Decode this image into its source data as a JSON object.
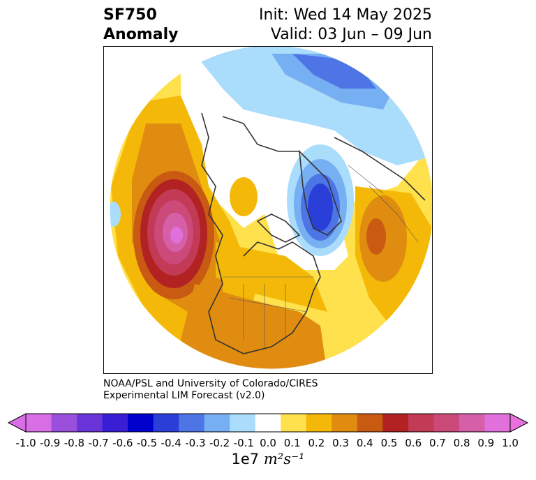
{
  "title": {
    "left_line1": "SF750",
    "left_line2": "Anomaly",
    "right_line1": "Init: Wed 14 May 2025",
    "right_line2": "Valid: 03 Jun – 09 Jun"
  },
  "credit": {
    "line1": "NOAA/PSL and University of Colorado/CIRES",
    "line2": "Experimental LIM Forecast (v2.0)"
  },
  "colorbar": {
    "units_prefix": "1e7",
    "units_math": "m²s⁻¹",
    "ticks": [
      "-1.0",
      "-0.9",
      "-0.8",
      "-0.7",
      "-0.6",
      "-0.5",
      "-0.4",
      "-0.3",
      "-0.2",
      "-0.1",
      "0.0",
      "0.1",
      "0.2",
      "0.3",
      "0.4",
      "0.5",
      "0.6",
      "0.7",
      "0.8",
      "0.9",
      "1.0"
    ],
    "colors": [
      "#d86fe6",
      "#9a50dc",
      "#6a35d8",
      "#3a1ed6",
      "#0000cc",
      "#2a3fd8",
      "#4d75e6",
      "#77b0f2",
      "#aadcfb",
      "#ffffff",
      "#ffe04d",
      "#f4b908",
      "#e08c10",
      "#c85a12",
      "#b22222",
      "#c23a55",
      "#cc4a7a",
      "#d660a8",
      "#e070dc"
    ],
    "extend_low_color": "#d86fe6",
    "extend_high_color": "#e870dc"
  },
  "map": {
    "projection": "north-polar-stereographic",
    "background": "#ffffff",
    "coastline_color": "#333333"
  }
}
